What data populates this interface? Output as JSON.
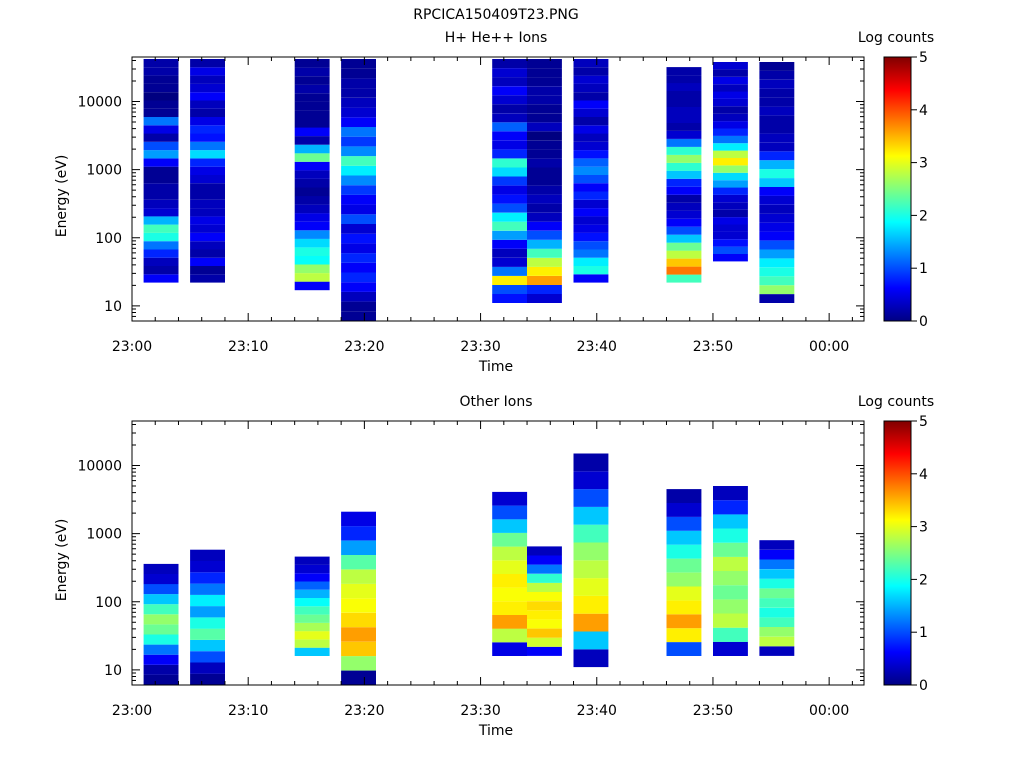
{
  "figure_title": "RPCICA150409T23.PNG",
  "chart_data": [
    {
      "type": "heatmap",
      "title": "H+ He++ Ions",
      "xlabel": "Time",
      "ylabel": "Energy (eV)",
      "y_scale": "log",
      "ylim": [
        6,
        45000
      ],
      "xlim": [
        "23:00",
        "00:03"
      ],
      "x_ticks": [
        "23:00",
        "23:10",
        "23:20",
        "23:30",
        "23:40",
        "23:50",
        "00:00"
      ],
      "y_ticks": [
        "10",
        "100",
        "1000",
        "10000"
      ],
      "colorbar": {
        "label": "Log counts",
        "min": 0,
        "max": 5,
        "ticks": [
          "0",
          "1",
          "2",
          "3",
          "4",
          "5"
        ]
      },
      "grid": false,
      "columns": [
        {
          "t_start": "23:01",
          "t_end": "23:04",
          "e_min": 22,
          "e_max": 42000,
          "levels": [
            0.6,
            0.2,
            0.3,
            0.8,
            1.2,
            2.0,
            2.2,
            1.5,
            0.4,
            0.3,
            0.2,
            0.2,
            0.1,
            0.1,
            0.6,
            1.4,
            1.0,
            0.2,
            0.5,
            1.2,
            0.1,
            0.1,
            0.0,
            0.1,
            0.1,
            0.2,
            0.2
          ]
        },
        {
          "t_start": "23:05",
          "t_end": "23:08",
          "e_min": 22,
          "e_max": 42000,
          "levels": [
            0.2,
            0.1,
            0.6,
            0.2,
            0.3,
            0.6,
            0.4,
            0.5,
            0.3,
            0.3,
            0.2,
            0.2,
            0.4,
            0.5,
            0.8,
            1.7,
            1.2,
            0.7,
            0.8,
            0.5,
            0.2,
            0.3,
            0.6,
            0.4,
            0.3,
            0.5,
            0.2
          ]
        },
        {
          "t_start": "23:14",
          "t_end": "23:17",
          "e_min": 17,
          "e_max": 42000,
          "levels": [
            0.6,
            2.8,
            2.6,
            1.9,
            2.0,
            1.7,
            1.3,
            0.6,
            0.5,
            0.3,
            0.2,
            0.1,
            0.2,
            0.3,
            0.6,
            2.4,
            1.5,
            0.2,
            0.6,
            0.1,
            0.1,
            0.1,
            0.1,
            0.2,
            0.1,
            0.2,
            0.1
          ]
        },
        {
          "t_start": "23:18",
          "t_end": "23:21",
          "e_min": 6,
          "e_max": 42000,
          "levels": [
            0.1,
            0.1,
            0.3,
            0.6,
            0.8,
            0.6,
            0.8,
            0.5,
            0.7,
            0.4,
            1.0,
            0.5,
            0.6,
            0.9,
            1.3,
            1.8,
            2.2,
            1.3,
            0.9,
            1.2,
            0.6,
            0.4,
            0.3,
            0.2,
            0.2,
            0.1,
            0.1
          ]
        },
        {
          "t_start": "23:31",
          "t_end": "23:34",
          "e_min": 11,
          "e_max": 42000,
          "levels": [
            0.7,
            1.0,
            3.2,
            1.2,
            0.4,
            0.3,
            0.6,
            1.4,
            2.2,
            1.8,
            1.0,
            0.7,
            0.5,
            0.9,
            1.7,
            2.1,
            0.8,
            0.5,
            0.6,
            1.1,
            0.3,
            0.2,
            0.4,
            0.6,
            0.3,
            0.4,
            0.2
          ]
        },
        {
          "t_start": "23:34",
          "t_end": "23:37",
          "e_min": 11,
          "e_max": 42000,
          "levels": [
            0.4,
            0.8,
            3.6,
            3.2,
            2.8,
            2.2,
            1.5,
            1.0,
            0.6,
            0.3,
            0.2,
            0.3,
            0.2,
            0.1,
            0.1,
            0.2,
            0.1,
            0.1,
            0.0,
            0.3,
            0.1,
            0.1,
            0.2,
            0.2,
            0.1,
            0.1,
            0.1
          ]
        },
        {
          "t_start": "23:38",
          "t_end": "23:41",
          "e_min": 22,
          "e_max": 42000,
          "levels": [
            0.6,
            2.0,
            1.8,
            1.2,
            1.0,
            0.7,
            0.5,
            0.4,
            0.6,
            0.4,
            0.8,
            0.6,
            1.0,
            1.3,
            1.1,
            0.7,
            0.4,
            0.3,
            0.5,
            0.2,
            0.4,
            0.6,
            0.2,
            0.3,
            0.4,
            0.2,
            0.3
          ]
        },
        {
          "t_start": "23:46",
          "t_end": "23:49",
          "e_min": 22,
          "e_max": 32000,
          "levels": [
            2.2,
            3.8,
            3.4,
            2.8,
            2.4,
            1.6,
            1.0,
            0.6,
            0.4,
            0.3,
            0.2,
            0.6,
            0.8,
            1.6,
            2.1,
            2.6,
            2.1,
            1.2,
            0.4,
            0.2,
            0.3,
            0.3,
            0.2,
            0.2,
            0.3,
            0.2,
            0.2
          ]
        },
        {
          "t_start": "23:50",
          "t_end": "23:53",
          "e_min": 45,
          "e_max": 38000,
          "levels": [
            0.6,
            1.0,
            0.7,
            0.4,
            0.4,
            0.5,
            0.2,
            0.3,
            0.4,
            0.8,
            1.4,
            1.7,
            2.6,
            3.2,
            2.8,
            1.8,
            1.2,
            0.8,
            0.5,
            0.3,
            0.2,
            0.4,
            0.5,
            0.3,
            0.5,
            0.2,
            0.4
          ]
        },
        {
          "t_start": "23:54",
          "t_end": "23:57",
          "e_min": 11,
          "e_max": 38000,
          "levels": [
            0.2,
            2.6,
            2.2,
            2.0,
            1.8,
            1.4,
            1.0,
            0.6,
            0.5,
            0.4,
            0.3,
            0.4,
            0.6,
            1.6,
            2.0,
            1.5,
            0.8,
            0.3,
            0.3,
            0.2,
            0.2,
            0.3,
            0.2,
            0.2,
            0.3,
            0.2,
            0.1
          ]
        }
      ]
    },
    {
      "type": "heatmap",
      "title": "Other Ions",
      "xlabel": "Time",
      "ylabel": "Energy (eV)",
      "y_scale": "log",
      "ylim": [
        6,
        45000
      ],
      "xlim": [
        "23:00",
        "00:03"
      ],
      "x_ticks": [
        "23:00",
        "23:10",
        "23:20",
        "23:30",
        "23:40",
        "23:50",
        "00:00"
      ],
      "y_ticks": [
        "10",
        "100",
        "1000",
        "10000"
      ],
      "colorbar": {
        "label": "Log counts",
        "min": 0,
        "max": 5,
        "ticks": [
          "0",
          "1",
          "2",
          "3",
          "4",
          "5"
        ]
      },
      "grid": false,
      "columns": [
        {
          "t_start": "23:01",
          "t_end": "23:04",
          "e_min": 6,
          "e_max": 360,
          "levels": [
            0.1,
            0.2,
            0.6,
            1.2,
            2.0,
            2.4,
            2.6,
            2.2,
            1.6,
            1.0,
            0.4,
            0.3
          ]
        },
        {
          "t_start": "23:05",
          "t_end": "23:08",
          "e_min": 6,
          "e_max": 580,
          "levels": [
            0.1,
            0.3,
            1.0,
            1.6,
            2.3,
            2.0,
            1.4,
            1.8,
            1.2,
            0.8,
            0.4,
            0.3
          ]
        },
        {
          "t_start": "23:14",
          "t_end": "23:17",
          "e_min": 16,
          "e_max": 460,
          "levels": [
            1.6,
            2.8,
            3.0,
            2.7,
            2.4,
            2.2,
            1.9,
            1.5,
            1.1,
            0.6,
            0.4,
            0.3
          ]
        },
        {
          "t_start": "23:18",
          "t_end": "23:21",
          "e_min": 6,
          "e_max": 2100,
          "levels": [
            0.1,
            2.6,
            3.4,
            3.6,
            3.3,
            3.1,
            3.0,
            2.8,
            2.3,
            1.4,
            0.8,
            0.5
          ]
        },
        {
          "t_start": "23:31",
          "t_end": "23:34",
          "e_min": 16,
          "e_max": 4100,
          "levels": [
            0.5,
            2.8,
            3.6,
            3.2,
            3.1,
            3.2,
            3.0,
            2.8,
            2.4,
            1.6,
            1.0,
            0.4
          ]
        },
        {
          "t_start": "23:34",
          "t_end": "23:37",
          "e_min": 16,
          "e_max": 650,
          "levels": [
            0.6,
            2.9,
            3.4,
            3.1,
            3.2,
            3.3,
            3.1,
            2.8,
            2.1,
            1.2,
            0.6,
            0.3
          ]
        },
        {
          "t_start": "23:38",
          "t_end": "23:41",
          "e_min": 11,
          "e_max": 15000,
          "levels": [
            0.3,
            1.6,
            3.6,
            3.2,
            3.0,
            2.8,
            2.6,
            2.2,
            1.6,
            1.0,
            0.4,
            0.2
          ]
        },
        {
          "t_start": "23:46",
          "t_end": "23:49",
          "e_min": 16,
          "e_max": 4500,
          "levels": [
            1.0,
            3.2,
            3.6,
            3.2,
            3.0,
            2.6,
            2.4,
            2.0,
            1.6,
            1.0,
            0.4,
            0.2
          ]
        },
        {
          "t_start": "23:50",
          "t_end": "23:53",
          "e_min": 16,
          "e_max": 5000,
          "levels": [
            0.4,
            2.2,
            2.8,
            2.6,
            2.4,
            2.6,
            2.8,
            2.4,
            2.0,
            1.6,
            0.8,
            0.3
          ]
        },
        {
          "t_start": "23:54",
          "t_end": "23:57",
          "e_min": 16,
          "e_max": 800,
          "levels": [
            0.3,
            2.8,
            2.6,
            2.2,
            2.0,
            2.2,
            2.4,
            2.0,
            1.6,
            1.2,
            0.6,
            0.3
          ]
        }
      ]
    }
  ]
}
